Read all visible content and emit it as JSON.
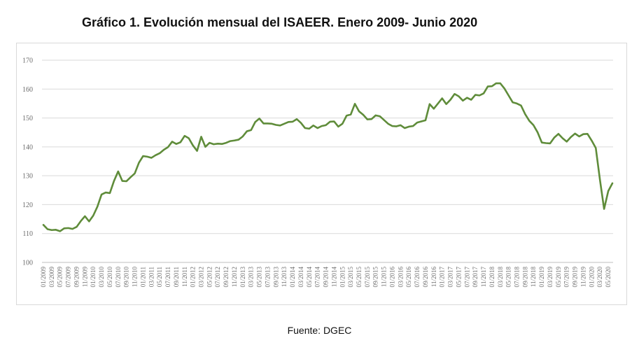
{
  "chart_title": "Gráfico 1. Evolución mensual del ISAEER. Enero 2009- Junio 2020",
  "source_note": "Fuente: DGEC",
  "colors": {
    "line": "#5f8c3a",
    "grid": "#d9d9d9",
    "axis_text": "#6b6b6b"
  },
  "chart_data": {
    "type": "line",
    "title": "Gráfico 1. Evolución mensual del ISAEER. Enero 2009- Junio 2020",
    "xlabel": "",
    "ylabel": "",
    "ylim": [
      100,
      170
    ],
    "y_ticks": [
      100,
      110,
      120,
      130,
      140,
      150,
      160,
      170
    ],
    "grid": true,
    "legend": "none",
    "x_tick_labels": [
      "01/2009",
      "03/2009",
      "05/2009",
      "07/2009",
      "09/2009",
      "11/2009",
      "01/2010",
      "03/2010",
      "05/2010",
      "07/2010",
      "09/2010",
      "11/2010",
      "01/2011",
      "03/2011",
      "05/2011",
      "07/2011",
      "09/2011",
      "11/2011",
      "01/2012",
      "03/2012",
      "05/2012",
      "07/2012",
      "09/2012",
      "11/2012",
      "01/2013",
      "03/2013",
      "05/2013",
      "07/2013",
      "09/2013",
      "11/2013",
      "01/2014",
      "03/2014",
      "05/2014",
      "07/2014",
      "09/2014",
      "11/2014",
      "01/2015",
      "03/2015",
      "05/2015",
      "07/2015",
      "09/2015",
      "11/2015",
      "01/2016",
      "03/2016",
      "05/2016",
      "07/2016",
      "09/2016",
      "11/2016",
      "01/2017",
      "03/2017",
      "05/2017",
      "07/2017",
      "09/2017",
      "11/2017",
      "01/2018",
      "03/2018",
      "05/2018",
      "07/2018",
      "09/2018",
      "11/2018",
      "01/2019",
      "03/2019",
      "05/2019",
      "07/2019",
      "09/2019",
      "11/2019",
      "01/2020",
      "03/2020",
      "05/2020"
    ],
    "series": [
      {
        "values": [
          113.0,
          111.5,
          111.2,
          111.3,
          110.8,
          111.8,
          111.9,
          111.6,
          112.3,
          114.3,
          116.0,
          114.2,
          116.2,
          119.3,
          123.5,
          124.2,
          124.0,
          128.2,
          131.5,
          128.2,
          128.1,
          129.5,
          130.8,
          134.5,
          136.8,
          136.6,
          136.2,
          137.1,
          137.8,
          139.0,
          139.9,
          141.8,
          141.0,
          141.6,
          143.8,
          143.0,
          140.5,
          138.6,
          143.5,
          140.0,
          141.4,
          140.9,
          141.1,
          141.0,
          141.4,
          142.0,
          142.2,
          142.5,
          143.6,
          145.4,
          145.8,
          148.6,
          149.8,
          148.1,
          148.1,
          148.0,
          147.6,
          147.4,
          148.0,
          148.6,
          148.7,
          149.6,
          148.3,
          146.5,
          146.3,
          147.4,
          146.5,
          147.2,
          147.5,
          148.7,
          148.8,
          147.0,
          148.0,
          150.8,
          151.2,
          154.9,
          152.3,
          151.1,
          149.5,
          149.6,
          150.9,
          150.6,
          149.3,
          148.0,
          147.2,
          147.1,
          147.5,
          146.5,
          147.0,
          147.2,
          148.4,
          148.8,
          149.2,
          154.8,
          153.2,
          155.0,
          156.8,
          154.8,
          156.3,
          158.3,
          157.5,
          156.0,
          157.0,
          156.3,
          158.0,
          157.8,
          158.5,
          160.9,
          161.0,
          162.0,
          162.0,
          160.2,
          157.8,
          155.4,
          155.0,
          154.3,
          151.3,
          149.0,
          147.5,
          145.0,
          141.5,
          141.3,
          141.2,
          143.2,
          144.5,
          143.0,
          141.8,
          143.4,
          144.6,
          143.6,
          144.4,
          144.5,
          142.2,
          139.6,
          128.6,
          118.5,
          124.7,
          127.4
        ]
      }
    ]
  }
}
